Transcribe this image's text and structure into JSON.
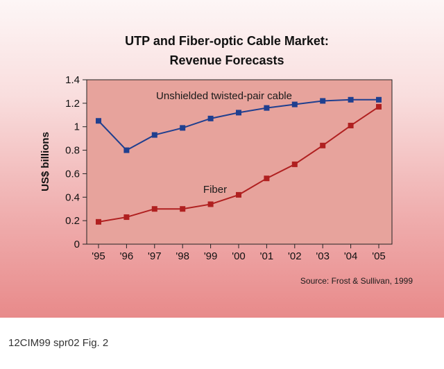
{
  "chart_data": {
    "type": "line",
    "title_line1": "UTP and Fiber-optic Cable Market:",
    "title_line2": "Revenue Forecasts",
    "xlabel": "",
    "ylabel": "US$ billions",
    "categories": [
      "'95",
      "'96",
      "'97",
      "'98",
      "'99",
      "'00",
      "'01",
      "'02",
      "'03",
      "'04",
      "'05"
    ],
    "ylim": [
      0,
      1.4
    ],
    "yticks": [
      "0",
      "0.2",
      "0.4",
      "0.6",
      "0.8",
      "1",
      "1.2",
      "1.4"
    ],
    "grid": false,
    "series": [
      {
        "name": "Unshielded twisted-pair cable",
        "color": "#1f3f8f",
        "values": [
          1.05,
          0.8,
          0.93,
          0.99,
          1.07,
          1.12,
          1.16,
          1.19,
          1.22,
          1.23,
          1.23
        ]
      },
      {
        "name": "Fiber",
        "color": "#b02020",
        "values": [
          0.19,
          0.23,
          0.3,
          0.3,
          0.34,
          0.42,
          0.56,
          0.68,
          0.84,
          1.01,
          1.17
        ]
      }
    ],
    "source": "Source: Frost & Sullivan, 1999"
  },
  "caption": "12CIM99 spr02 Fig. 2"
}
